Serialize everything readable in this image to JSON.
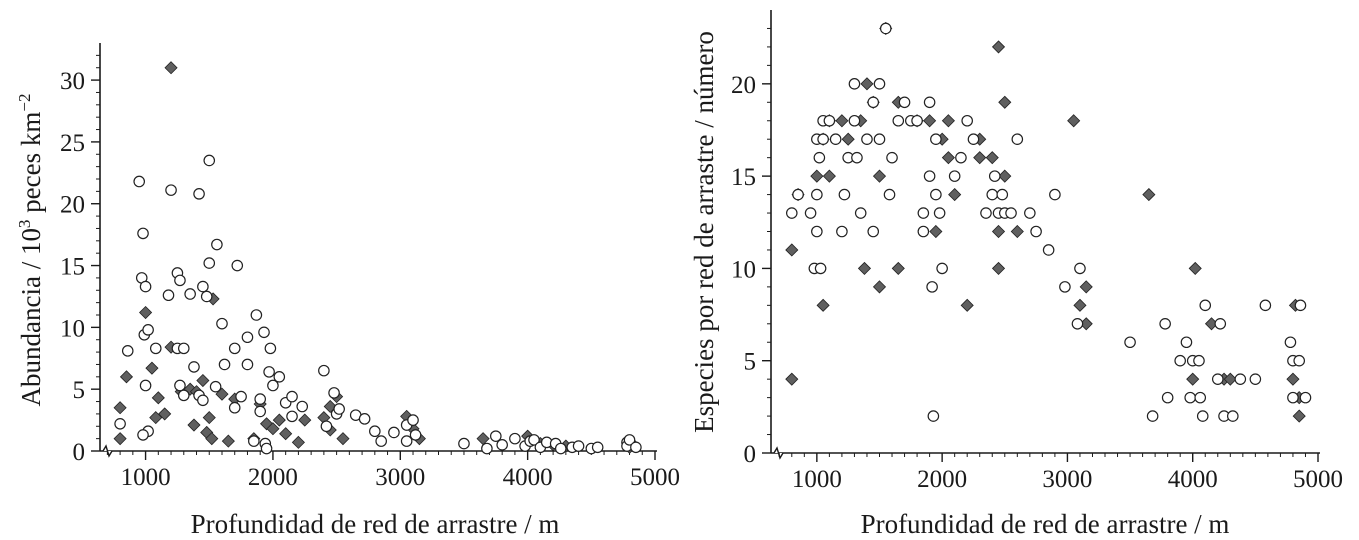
{
  "chart_data": [
    {
      "type": "scatter",
      "title": "",
      "xlabel": "Profundidad de red de arrastre / m",
      "ylabel_parts": [
        "Abundancia / 10",
        "3",
        " peces km",
        "−2"
      ],
      "xlim": [
        650,
        5000
      ],
      "ylim": [
        0,
        33
      ],
      "x_ticks": [
        1000,
        2000,
        3000,
        4000,
        5000
      ],
      "y_ticks": [
        0,
        5,
        10,
        15,
        20,
        25,
        30
      ],
      "axis_break": true,
      "grid": false,
      "colors": {
        "filled": "#5f5f5f",
        "open": "#ffffff",
        "edge": "#222222"
      },
      "series": [
        {
          "marker": "diamond-filled",
          "points": [
            [
              800,
              3.5
            ],
            [
              800,
              1.0
            ],
            [
              850,
              6.0
            ],
            [
              1000,
              11.2
            ],
            [
              1050,
              6.7
            ],
            [
              1080,
              2.7
            ],
            [
              1100,
              4.3
            ],
            [
              1150,
              3.0
            ],
            [
              1200,
              31.0
            ],
            [
              1200,
              8.4
            ],
            [
              1280,
              4.8
            ],
            [
              1350,
              5.0
            ],
            [
              1380,
              2.1
            ],
            [
              1450,
              5.7
            ],
            [
              1400,
              4.8
            ],
            [
              1480,
              1.5
            ],
            [
              1500,
              2.7
            ],
            [
              1530,
              12.3
            ],
            [
              1520,
              1.0
            ],
            [
              1600,
              4.6
            ],
            [
              1650,
              0.8
            ],
            [
              1700,
              4.2
            ],
            [
              1850,
              1.0
            ],
            [
              1900,
              3.8
            ],
            [
              1950,
              2.2
            ],
            [
              2000,
              1.8
            ],
            [
              2050,
              2.5
            ],
            [
              2100,
              1.4
            ],
            [
              2200,
              0.7
            ],
            [
              2250,
              2.5
            ],
            [
              2400,
              2.7
            ],
            [
              2450,
              3.6
            ],
            [
              2450,
              1.7
            ],
            [
              2500,
              4.4
            ],
            [
              2550,
              1.0
            ],
            [
              3050,
              2.8
            ],
            [
              3100,
              1.8
            ],
            [
              3150,
              1.0
            ],
            [
              3650,
              1.0
            ],
            [
              4000,
              1.2
            ],
            [
              4100,
              0.6
            ],
            [
              4200,
              0.5
            ],
            [
              4300,
              0.4
            ],
            [
              4800,
              0.3
            ],
            [
              4820,
              0.6
            ]
          ]
        },
        {
          "marker": "circle-open",
          "points": [
            [
              800,
              2.2
            ],
            [
              860,
              8.1
            ],
            [
              950,
              21.8
            ],
            [
              970,
              14.0
            ],
            [
              980,
              17.6
            ],
            [
              1000,
              13.3
            ],
            [
              990,
              9.4
            ],
            [
              1020,
              9.8
            ],
            [
              1000,
              5.3
            ],
            [
              1020,
              1.6
            ],
            [
              980,
              1.3
            ],
            [
              1080,
              8.3
            ],
            [
              1180,
              12.6
            ],
            [
              1200,
              21.1
            ],
            [
              1250,
              14.4
            ],
            [
              1270,
              13.8
            ],
            [
              1250,
              8.3
            ],
            [
              1300,
              8.3
            ],
            [
              1270,
              5.3
            ],
            [
              1300,
              4.5
            ],
            [
              1350,
              12.7
            ],
            [
              1380,
              6.8
            ],
            [
              1420,
              20.8
            ],
            [
              1450,
              13.3
            ],
            [
              1480,
              12.5
            ],
            [
              1420,
              4.5
            ],
            [
              1450,
              4.1
            ],
            [
              1500,
              23.5
            ],
            [
              1500,
              15.2
            ],
            [
              1550,
              5.2
            ],
            [
              1560,
              16.7
            ],
            [
              1600,
              10.3
            ],
            [
              1620,
              7.0
            ],
            [
              1700,
              8.3
            ],
            [
              1720,
              15.0
            ],
            [
              1750,
              4.4
            ],
            [
              1700,
              3.5
            ],
            [
              1800,
              9.2
            ],
            [
              1800,
              7.0
            ],
            [
              1850,
              0.8
            ],
            [
              1870,
              11.0
            ],
            [
              1900,
              4.2
            ],
            [
              1900,
              3.2
            ],
            [
              1930,
              9.6
            ],
            [
              1940,
              0.6
            ],
            [
              1950,
              0.2
            ],
            [
              1970,
              6.4
            ],
            [
              1980,
              8.3
            ],
            [
              2000,
              5.3
            ],
            [
              2050,
              6.0
            ],
            [
              2100,
              3.9
            ],
            [
              2150,
              4.4
            ],
            [
              2150,
              2.8
            ],
            [
              2230,
              3.6
            ],
            [
              2400,
              6.5
            ],
            [
              2420,
              2.0
            ],
            [
              2480,
              4.7
            ],
            [
              2500,
              3.0
            ],
            [
              2520,
              3.4
            ],
            [
              2650,
              2.9
            ],
            [
              2720,
              2.6
            ],
            [
              2800,
              1.6
            ],
            [
              2850,
              0.8
            ],
            [
              2950,
              1.5
            ],
            [
              3050,
              2.1
            ],
            [
              3100,
              2.5
            ],
            [
              3120,
              1.3
            ],
            [
              3050,
              0.8
            ],
            [
              3500,
              0.6
            ],
            [
              3680,
              0.2
            ],
            [
              3750,
              1.2
            ],
            [
              3800,
              0.5
            ],
            [
              3900,
              1.0
            ],
            [
              3980,
              0.4
            ],
            [
              4020,
              0.8
            ],
            [
              4050,
              0.9
            ],
            [
              4100,
              0.3
            ],
            [
              4150,
              0.7
            ],
            [
              4220,
              0.6
            ],
            [
              4260,
              0.2
            ],
            [
              4350,
              0.3
            ],
            [
              4400,
              0.4
            ],
            [
              4500,
              0.2
            ],
            [
              4550,
              0.3
            ],
            [
              4780,
              0.7
            ],
            [
              4780,
              0.4
            ],
            [
              4800,
              0.9
            ],
            [
              4850,
              0.3
            ]
          ]
        }
      ]
    },
    {
      "type": "scatter",
      "title": "",
      "xlabel": "Profundidad de red de arrastre / m",
      "ylabel": "Especies por red de arrastre / número",
      "xlim": [
        650,
        5000
      ],
      "ylim": [
        0,
        24
      ],
      "x_ticks": [
        1000,
        2000,
        3000,
        4000,
        5000
      ],
      "y_ticks": [
        0,
        5,
        10,
        15,
        20
      ],
      "axis_break": true,
      "grid": false,
      "colors": {
        "filled": "#5f5f5f",
        "open": "#ffffff",
        "edge": "#222222"
      },
      "series": [
        {
          "marker": "diamond-filled",
          "points": [
            [
              800,
              11
            ],
            [
              800,
              4
            ],
            [
              850,
              14
            ],
            [
              1000,
              15
            ],
            [
              1050,
              8
            ],
            [
              1050,
              17
            ],
            [
              1100,
              18
            ],
            [
              1100,
              15
            ],
            [
              1200,
              18
            ],
            [
              1250,
              17
            ],
            [
              1350,
              18
            ],
            [
              1380,
              10
            ],
            [
              1400,
              20
            ],
            [
              1450,
              19
            ],
            [
              1500,
              15
            ],
            [
              1500,
              9
            ],
            [
              1550,
              23
            ],
            [
              1650,
              19
            ],
            [
              1650,
              10
            ],
            [
              1800,
              18
            ],
            [
              1900,
              18
            ],
            [
              1950,
              12
            ],
            [
              2000,
              17
            ],
            [
              2050,
              16
            ],
            [
              2050,
              18
            ],
            [
              2100,
              14
            ],
            [
              2200,
              8
            ],
            [
              2300,
              17
            ],
            [
              2300,
              16
            ],
            [
              2400,
              16
            ],
            [
              2450,
              12
            ],
            [
              2450,
              10
            ],
            [
              2450,
              22
            ],
            [
              2500,
              15
            ],
            [
              2500,
              19
            ],
            [
              2600,
              12
            ],
            [
              3050,
              18
            ],
            [
              3100,
              8
            ],
            [
              3150,
              9
            ],
            [
              3150,
              7
            ],
            [
              3650,
              14
            ],
            [
              4000,
              4
            ],
            [
              4020,
              10
            ],
            [
              4150,
              7
            ],
            [
              4250,
              4
            ],
            [
              4300,
              4
            ],
            [
              4800,
              4
            ],
            [
              4820,
              8
            ],
            [
              4850,
              2
            ],
            [
              4850,
              3
            ]
          ]
        },
        {
          "marker": "circle-open",
          "points": [
            [
              800,
              13
            ],
            [
              850,
              14
            ],
            [
              950,
              13
            ],
            [
              980,
              10
            ],
            [
              1000,
              17
            ],
            [
              1000,
              14
            ],
            [
              1000,
              12
            ],
            [
              1020,
              16
            ],
            [
              1050,
              17
            ],
            [
              1030,
              10
            ],
            [
              1050,
              18
            ],
            [
              1100,
              18
            ],
            [
              1150,
              17
            ],
            [
              1200,
              12
            ],
            [
              1220,
              14
            ],
            [
              1250,
              16
            ],
            [
              1300,
              18
            ],
            [
              1300,
              20
            ],
            [
              1320,
              16
            ],
            [
              1350,
              13
            ],
            [
              1400,
              17
            ],
            [
              1450,
              19
            ],
            [
              1450,
              12
            ],
            [
              1500,
              20
            ],
            [
              1500,
              17
            ],
            [
              1550,
              23
            ],
            [
              1580,
              14
            ],
            [
              1600,
              16
            ],
            [
              1650,
              18
            ],
            [
              1700,
              19
            ],
            [
              1750,
              18
            ],
            [
              1800,
              18
            ],
            [
              1850,
              13
            ],
            [
              1850,
              12
            ],
            [
              1900,
              19
            ],
            [
              1900,
              15
            ],
            [
              1920,
              9
            ],
            [
              1930,
              2
            ],
            [
              1950,
              17
            ],
            [
              1950,
              14
            ],
            [
              1980,
              13
            ],
            [
              2000,
              10
            ],
            [
              2100,
              15
            ],
            [
              2150,
              16
            ],
            [
              2200,
              18
            ],
            [
              2250,
              17
            ],
            [
              2350,
              13
            ],
            [
              2400,
              14
            ],
            [
              2420,
              15
            ],
            [
              2450,
              13
            ],
            [
              2480,
              14
            ],
            [
              2500,
              13
            ],
            [
              2550,
              13
            ],
            [
              2600,
              17
            ],
            [
              2700,
              13
            ],
            [
              2750,
              12
            ],
            [
              2850,
              11
            ],
            [
              2900,
              14
            ],
            [
              2980,
              9
            ],
            [
              3080,
              7
            ],
            [
              3100,
              10
            ],
            [
              3500,
              6
            ],
            [
              3680,
              2
            ],
            [
              3780,
              7
            ],
            [
              3800,
              3
            ],
            [
              3900,
              5
            ],
            [
              3950,
              6
            ],
            [
              3980,
              3
            ],
            [
              4000,
              5
            ],
            [
              4050,
              5
            ],
            [
              4060,
              3
            ],
            [
              4080,
              2
            ],
            [
              4100,
              8
            ],
            [
              4200,
              4
            ],
            [
              4220,
              7
            ],
            [
              4250,
              2
            ],
            [
              4320,
              2
            ],
            [
              4380,
              4
            ],
            [
              4500,
              4
            ],
            [
              4580,
              8
            ],
            [
              4780,
              6
            ],
            [
              4800,
              5
            ],
            [
              4800,
              3
            ],
            [
              4850,
              5
            ],
            [
              4860,
              8
            ],
            [
              4900,
              3
            ]
          ]
        }
      ]
    }
  ]
}
